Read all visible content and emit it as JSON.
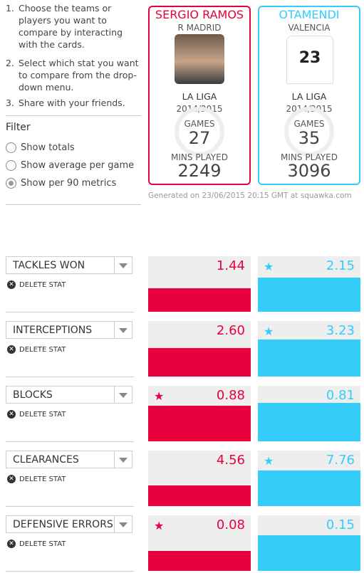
{
  "instructions": [
    "Choose the teams or players you want to compare by interacting with the cards.",
    "Select which stat you want to compare from the drop-down menu.",
    "Share with your friends."
  ],
  "filter": {
    "title": "Filter",
    "options": [
      "Show totals",
      "Show average per game",
      "Show per 90 metrics"
    ]
  },
  "players": [
    {
      "name": "SERGIO RAMOS",
      "team": "R MADRID",
      "league": "LA LIGA",
      "season": "2014/2015",
      "games_label": "GAMES",
      "games": 27,
      "mins_label": "MINS PLAYED",
      "mins": 2249
    },
    {
      "name": "OTAMENDI",
      "team": "VALENCIA",
      "shirt_number": 23,
      "league": "LA LIGA",
      "season": "2014/2015",
      "games_label": "GAMES",
      "games": 35,
      "mins_label": "MINS PLAYED",
      "mins": 3096
    }
  ],
  "generated": "Generated on 23/06/2015 20:15 GMT at squawka.com",
  "stats": [
    {
      "name": "TACKLES WON",
      "delete": "DELETE STAT",
      "values": [
        "1.44",
        "2.15"
      ]
    },
    {
      "name": "INTERCEPTIONS",
      "delete": "DELETE STAT",
      "values": [
        "2.60",
        "3.23"
      ]
    },
    {
      "name": "BLOCKS",
      "delete": "DELETE STAT",
      "values": [
        "0.88",
        "0.81"
      ]
    },
    {
      "name": "CLEARANCES",
      "delete": "DELETE STAT",
      "values": [
        "4.56",
        "7.76"
      ]
    },
    {
      "name": "DEFENSIVE ERRORS",
      "delete": "DELETE STAT",
      "values": [
        "0.08",
        "0.15"
      ]
    }
  ]
}
